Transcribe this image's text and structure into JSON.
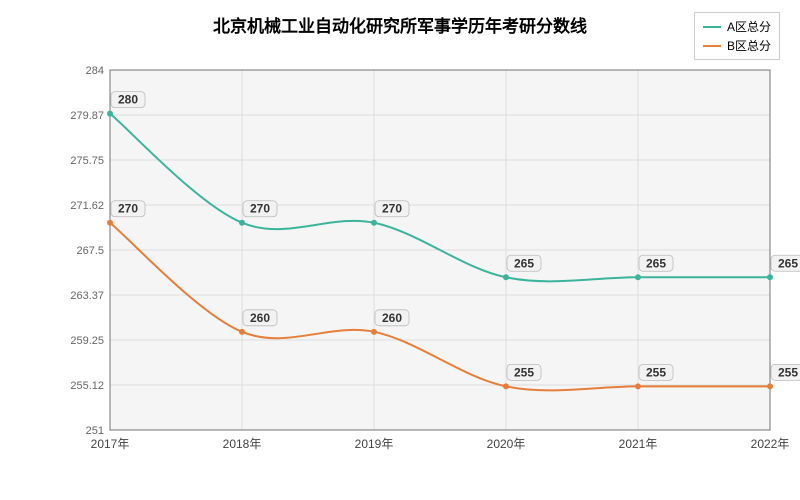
{
  "chart": {
    "type": "line",
    "title": "北京机械工业自动化研究所军事学历年考研分数线",
    "title_fontsize": 17,
    "background_color": "#f5f5f5",
    "grid_border_color": "#888888",
    "grid_line_color": "#dddddd",
    "x": {
      "categories": [
        "2017年",
        "2018年",
        "2019年",
        "2020年",
        "2021年",
        "2022年"
      ]
    },
    "y": {
      "min": 251,
      "max": 284,
      "ticks": [
        251,
        255.12,
        259.25,
        263.37,
        267.5,
        271.62,
        275.75,
        279.87,
        284
      ],
      "tick_labels": [
        "251",
        "255.12",
        "259.25",
        "263.37",
        "267.5",
        "271.62",
        "275.75",
        "279.87",
        "284"
      ]
    },
    "series": [
      {
        "name": "A区总分",
        "color": "#3cb49c",
        "values": [
          280,
          270,
          270,
          265,
          265,
          265
        ],
        "labels": [
          "280",
          "270",
          "270",
          "265",
          "265",
          "265"
        ]
      },
      {
        "name": "B区总分",
        "color": "#e67e3b",
        "values": [
          270,
          260,
          260,
          255,
          255,
          255
        ],
        "labels": [
          "270",
          "260",
          "260",
          "255",
          "255",
          "255"
        ]
      }
    ],
    "legend": {
      "items": [
        "A区总分",
        "B区总分"
      ]
    }
  }
}
